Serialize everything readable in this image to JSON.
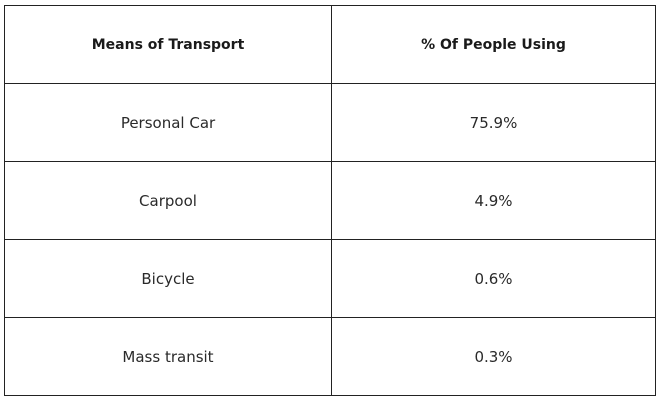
{
  "table": {
    "headers": [
      "Means of Transport",
      "% Of People Using"
    ],
    "rows": [
      [
        "Personal Car",
        "75.9%"
      ],
      [
        "Carpool",
        "4.9%"
      ],
      [
        "Bicycle",
        "0.6%"
      ],
      [
        "Mass transit",
        "0.3%"
      ]
    ]
  }
}
